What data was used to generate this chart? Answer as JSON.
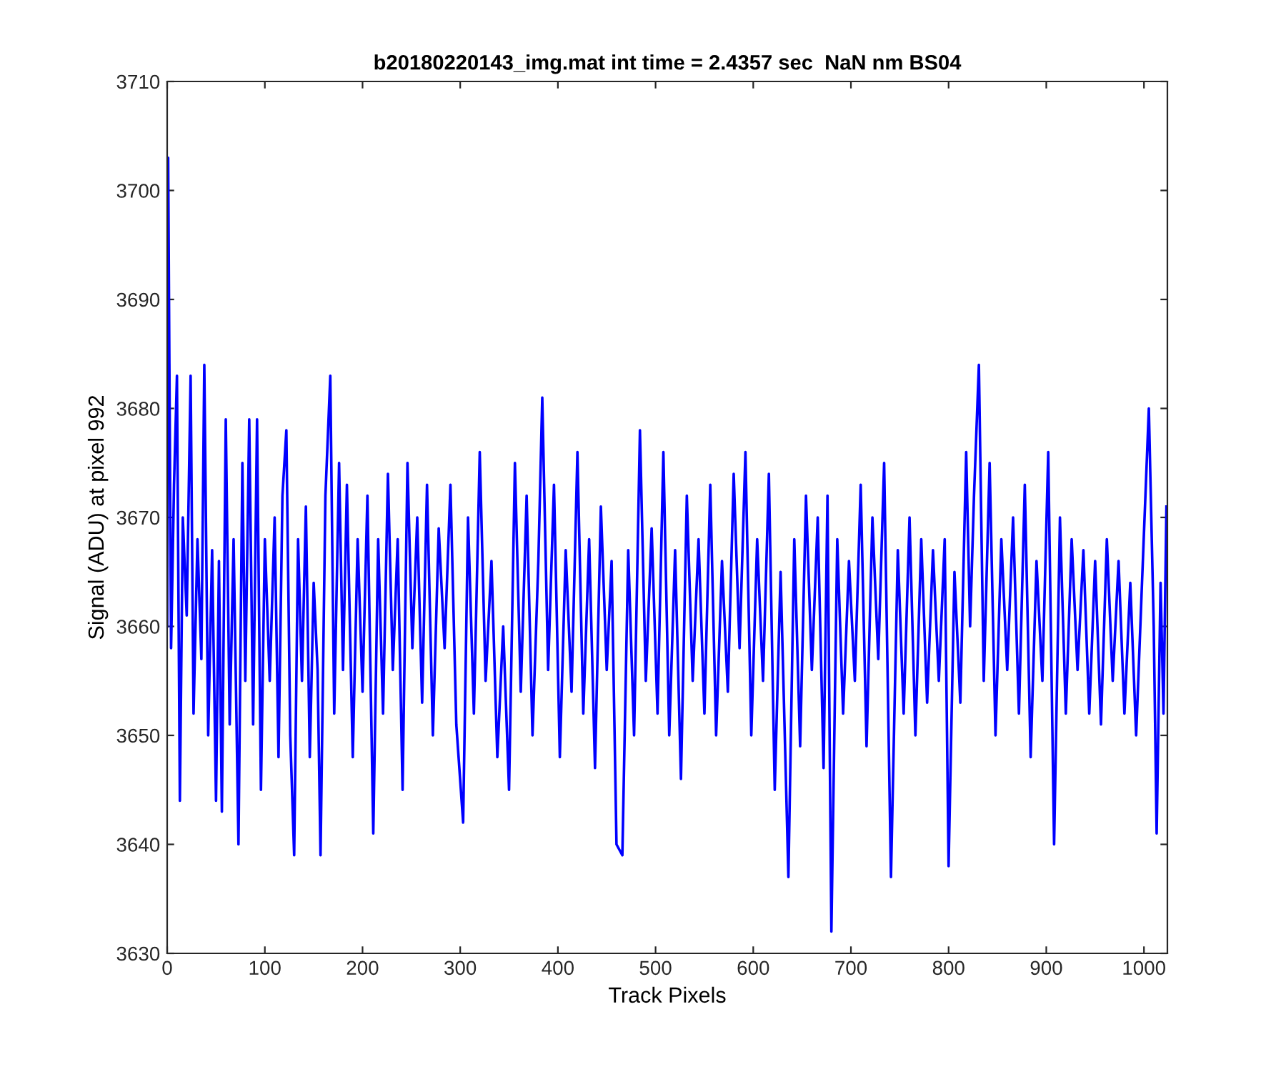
{
  "chart_data": {
    "type": "line",
    "title": "b20180220143_img.mat int time = 2.4357 sec  NaN nm BS04",
    "xlabel": "Track Pixels",
    "ylabel": "Signal (ADU) at pixel 992",
    "xlim": [
      0,
      1024
    ],
    "ylim": [
      3630,
      3710
    ],
    "xticks": [
      0,
      100,
      200,
      300,
      400,
      500,
      600,
      700,
      800,
      900,
      1000
    ],
    "yticks": [
      3630,
      3640,
      3650,
      3660,
      3670,
      3680,
      3690,
      3700,
      3710
    ],
    "grid": false,
    "marker": "none",
    "line_style": "solid",
    "series": [
      {
        "color": "#0000ff",
        "x": [
          0,
          1,
          4,
          7,
          10,
          13,
          16,
          20,
          24,
          27,
          31,
          35,
          38,
          42,
          46,
          50,
          53,
          56,
          60,
          64,
          68,
          73,
          77,
          80,
          84,
          88,
          92,
          96,
          100,
          105,
          110,
          114,
          118,
          122,
          126,
          130,
          134,
          138,
          142,
          146,
          150,
          154,
          157,
          162,
          167,
          171,
          176,
          180,
          184,
          190,
          195,
          200,
          205,
          211,
          216,
          221,
          226,
          231,
          236,
          241,
          246,
          251,
          256,
          261,
          266,
          272,
          278,
          284,
          290,
          296,
          303,
          308,
          314,
          320,
          326,
          332,
          338,
          344,
          350,
          356,
          362,
          368,
          374,
          380,
          384,
          390,
          396,
          402,
          408,
          414,
          420,
          426,
          432,
          438,
          444,
          450,
          455,
          460,
          466,
          472,
          478,
          484,
          490,
          496,
          502,
          508,
          514,
          520,
          526,
          532,
          538,
          544,
          550,
          556,
          562,
          568,
          574,
          580,
          586,
          592,
          598,
          604,
          610,
          616,
          622,
          628,
          636,
          642,
          648,
          654,
          660,
          666,
          672,
          676,
          680,
          686,
          692,
          698,
          704,
          710,
          716,
          722,
          728,
          734,
          741,
          748,
          754,
          760,
          766,
          772,
          778,
          784,
          790,
          796,
          800,
          806,
          812,
          818,
          822,
          826,
          831,
          836,
          842,
          848,
          854,
          860,
          866,
          872,
          878,
          884,
          890,
          896,
          902,
          908,
          914,
          920,
          926,
          932,
          938,
          944,
          950,
          956,
          962,
          968,
          974,
          980,
          986,
          992,
          998,
          1005,
          1010,
          1013,
          1017,
          1020,
          1023
        ],
        "values": [
          3660,
          3703,
          3658,
          3673,
          3683,
          3644,
          3670,
          3661,
          3683,
          3652,
          3668,
          3657,
          3684,
          3650,
          3667,
          3644,
          3666,
          3643,
          3679,
          3651,
          3668,
          3640,
          3675,
          3655,
          3679,
          3651,
          3679,
          3645,
          3668,
          3655,
          3670,
          3648,
          3672,
          3678,
          3650,
          3639,
          3668,
          3655,
          3671,
          3648,
          3664,
          3656,
          3639,
          3672,
          3683,
          3652,
          3675,
          3656,
          3673,
          3648,
          3668,
          3654,
          3672,
          3641,
          3668,
          3652,
          3674,
          3656,
          3668,
          3645,
          3675,
          3658,
          3670,
          3653,
          3673,
          3650,
          3669,
          3658,
          3673,
          3651,
          3642,
          3670,
          3652,
          3676,
          3655,
          3666,
          3648,
          3660,
          3645,
          3675,
          3654,
          3672,
          3650,
          3666,
          3681,
          3656,
          3673,
          3648,
          3667,
          3654,
          3676,
          3652,
          3668,
          3647,
          3671,
          3656,
          3666,
          3640,
          3639,
          3667,
          3650,
          3678,
          3655,
          3669,
          3652,
          3676,
          3650,
          3667,
          3646,
          3672,
          3655,
          3668,
          3652,
          3673,
          3650,
          3666,
          3654,
          3674,
          3658,
          3676,
          3650,
          3668,
          3655,
          3674,
          3645,
          3665,
          3637,
          3668,
          3649,
          3672,
          3656,
          3670,
          3647,
          3672,
          3632,
          3668,
          3652,
          3666,
          3655,
          3673,
          3649,
          3670,
          3657,
          3675,
          3637,
          3667,
          3652,
          3670,
          3650,
          3668,
          3653,
          3667,
          3655,
          3668,
          3638,
          3665,
          3653,
          3676,
          3660,
          3672,
          3684,
          3655,
          3675,
          3650,
          3668,
          3656,
          3670,
          3652,
          3673,
          3648,
          3666,
          3655,
          3676,
          3640,
          3670,
          3652,
          3668,
          3656,
          3667,
          3652,
          3666,
          3651,
          3668,
          3655,
          3666,
          3652,
          3664,
          3650,
          3664,
          3680,
          3660,
          3641,
          3664,
          3652,
          3671
        ]
      }
    ]
  }
}
